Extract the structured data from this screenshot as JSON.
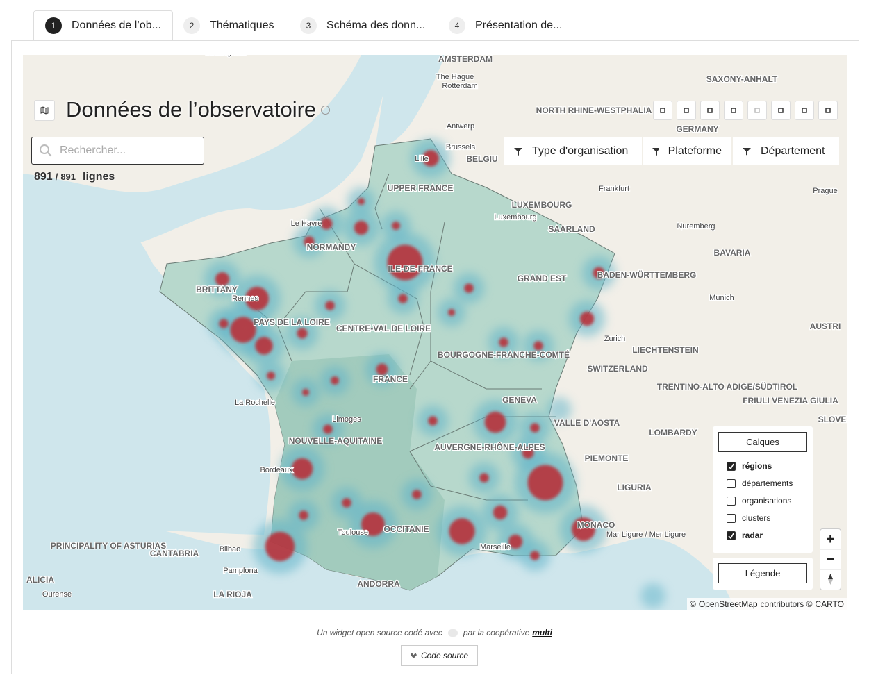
{
  "tabs": [
    {
      "number": "1",
      "label": "Données de l’ob..."
    },
    {
      "number": "2",
      "label": "Thématiques"
    },
    {
      "number": "3",
      "label": "Schéma des donn..."
    },
    {
      "number": "4",
      "label": "Présentation de..."
    }
  ],
  "widget": {
    "title": "Données de l’observatoire",
    "search_placeholder": "Rechercher...",
    "count": {
      "shown": "891",
      "separator": "/",
      "total": "891",
      "unit": "lignes"
    },
    "filters": [
      "Type d'organisation",
      "Plateforme",
      "Département"
    ]
  },
  "map": {
    "labels": [
      "Birmingham",
      "AMSTERDAM",
      "The Hague",
      "Rotterdam",
      "SAXONY-ANHALT",
      "NORTH RHINE-WESTPHALIA",
      "GERMANY",
      "Antwerp",
      "Brussels",
      "BELGIU",
      "Lille",
      "UPPER FRANCE",
      "Frankfurt",
      "Prague",
      "LUXEMBOURG",
      "Luxembourg",
      "SAARLAND",
      "Nuremberg",
      "Le Havre",
      "NORMANDY",
      "ILE-DE-FRANCE",
      "BAVARIA",
      "BADEN-WÜRTTEMBERG",
      "GRAND EST",
      "Munich",
      "BRITTANY",
      "Rennes",
      "PAYS DE LA LOIRE",
      "CENTRE-VAL DE LOIRE",
      "AUSTRI",
      "Zurich",
      "BOURGOGNE-FRANCHE-COMTÉ",
      "LIECHTENSTEIN",
      "SWITZERLAND",
      "FRANCE",
      "TRENTINO-ALTO ADIGE/SÜDTIROL",
      "FRIULI VENEZIA GIULIA",
      "La Rochelle",
      "GENEVA",
      "Limoges",
      "SLOVE",
      "VALLE D'AOSTA",
      "NOUVELLE-AQUITAINE",
      "LOMBARDY",
      "AUVERGNE-RHÔNE-ALPES",
      "PIEMONTE",
      "Bordeaux",
      "LIGURIA",
      "PRINCIPALITY OF ASTURIAS",
      "CANTABRIA",
      "Bilbao",
      "Toulouse",
      "OCCITANIE",
      "Marseille",
      "Mar Ligure / Mer Ligure",
      "MONACO",
      "Pamplona",
      "ALICIA",
      "Ourense",
      "LA RIOJA",
      "ANDORRA"
    ],
    "layers": {
      "title": "Calques",
      "items": [
        {
          "label": "régions",
          "checked": true
        },
        {
          "label": "départements",
          "checked": false
        },
        {
          "label": "organisations",
          "checked": false
        },
        {
          "label": "clusters",
          "checked": false
        },
        {
          "label": "radar",
          "checked": true
        }
      ]
    },
    "legend_button": "Légende",
    "attribution": {
      "prefix": "©",
      "osm": "OpenStreetMap",
      "middle": "contributors ©",
      "carto": "CARTO"
    }
  },
  "footer": {
    "text_before": "Un widget open source codé avec",
    "text_after": "par la coopérative",
    "link": "multi",
    "source_button": "Code source"
  }
}
